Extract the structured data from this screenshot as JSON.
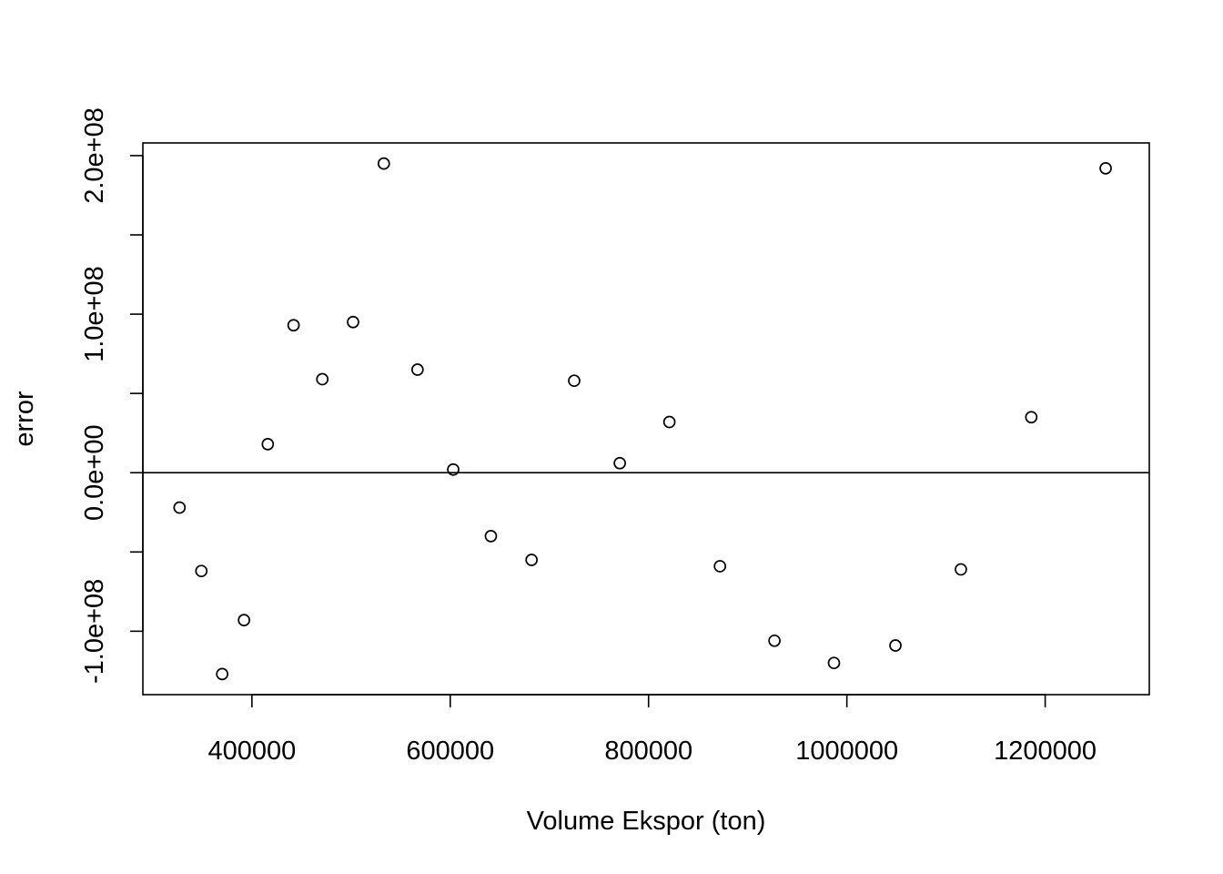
{
  "chart_data": {
    "type": "scatter",
    "xlabel": "Volume Ekspor (ton)",
    "ylabel": "error",
    "xlim": [
      290000,
      1305000
    ],
    "ylim": [
      -140000000,
      208000000
    ],
    "x_ticks": [
      400000,
      600000,
      800000,
      1000000,
      1200000
    ],
    "x_tick_labels": [
      "400000",
      "600000",
      "800000",
      "1000000",
      "1200000"
    ],
    "y_ticks": [
      -100000000,
      -50000000,
      0,
      50000000,
      100000000,
      150000000,
      200000000
    ],
    "y_tick_labels": [
      "-1.0e+08",
      "",
      "0.0e+00",
      "",
      "1.0e+08",
      "",
      "2.0e+08"
    ],
    "hline": 0,
    "grid": false,
    "legend": "none",
    "points": [
      {
        "x": 327000,
        "y": -22000000
      },
      {
        "x": 349000,
        "y": -62000000
      },
      {
        "x": 370000,
        "y": -127000000
      },
      {
        "x": 392000,
        "y": -93000000
      },
      {
        "x": 416000,
        "y": 18000000
      },
      {
        "x": 442000,
        "y": 93000000
      },
      {
        "x": 471000,
        "y": 59000000
      },
      {
        "x": 502000,
        "y": 95000000
      },
      {
        "x": 533000,
        "y": 195000000
      },
      {
        "x": 567000,
        "y": 65000000
      },
      {
        "x": 603000,
        "y": 2000000
      },
      {
        "x": 641000,
        "y": -40000000
      },
      {
        "x": 682000,
        "y": -55000000
      },
      {
        "x": 725000,
        "y": 58000000
      },
      {
        "x": 771000,
        "y": 6000000
      },
      {
        "x": 821000,
        "y": 32000000
      },
      {
        "x": 872000,
        "y": -59000000
      },
      {
        "x": 927000,
        "y": -106000000
      },
      {
        "x": 987000,
        "y": -120000000
      },
      {
        "x": 1049000,
        "y": -109000000
      },
      {
        "x": 1115000,
        "y": -61000000
      },
      {
        "x": 1186000,
        "y": 35000000
      },
      {
        "x": 1261000,
        "y": 192000000
      }
    ]
  }
}
